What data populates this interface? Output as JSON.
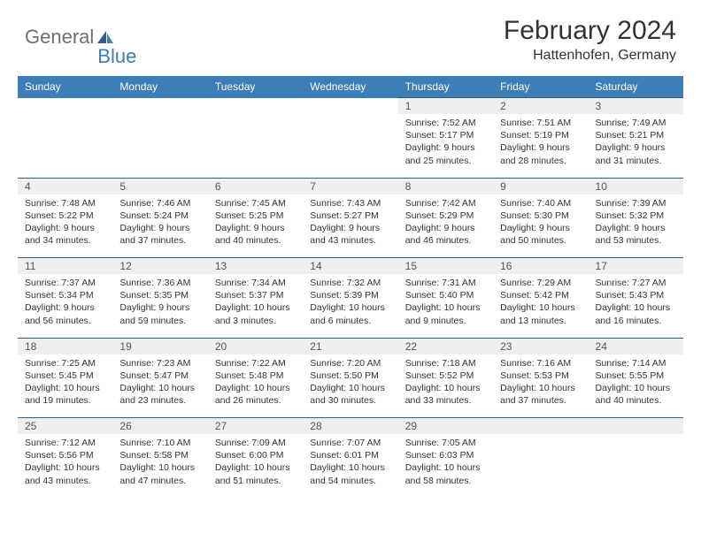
{
  "logo": {
    "text1": "General",
    "text2": "Blue"
  },
  "title": "February 2024",
  "location": "Hattenhofen, Germany",
  "day_header_bg": "#3d7db8",
  "day_header_fg": "#ffffff",
  "daynum_bg": "#efefef",
  "rule_color": "#2d5f8f",
  "days_of_week": [
    "Sunday",
    "Monday",
    "Tuesday",
    "Wednesday",
    "Thursday",
    "Friday",
    "Saturday"
  ],
  "weeks": [
    [
      null,
      null,
      null,
      null,
      {
        "n": "1",
        "sr": "Sunrise: 7:52 AM",
        "ss": "Sunset: 5:17 PM",
        "d1": "Daylight: 9 hours",
        "d2": "and 25 minutes."
      },
      {
        "n": "2",
        "sr": "Sunrise: 7:51 AM",
        "ss": "Sunset: 5:19 PM",
        "d1": "Daylight: 9 hours",
        "d2": "and 28 minutes."
      },
      {
        "n": "3",
        "sr": "Sunrise: 7:49 AM",
        "ss": "Sunset: 5:21 PM",
        "d1": "Daylight: 9 hours",
        "d2": "and 31 minutes."
      }
    ],
    [
      {
        "n": "4",
        "sr": "Sunrise: 7:48 AM",
        "ss": "Sunset: 5:22 PM",
        "d1": "Daylight: 9 hours",
        "d2": "and 34 minutes."
      },
      {
        "n": "5",
        "sr": "Sunrise: 7:46 AM",
        "ss": "Sunset: 5:24 PM",
        "d1": "Daylight: 9 hours",
        "d2": "and 37 minutes."
      },
      {
        "n": "6",
        "sr": "Sunrise: 7:45 AM",
        "ss": "Sunset: 5:25 PM",
        "d1": "Daylight: 9 hours",
        "d2": "and 40 minutes."
      },
      {
        "n": "7",
        "sr": "Sunrise: 7:43 AM",
        "ss": "Sunset: 5:27 PM",
        "d1": "Daylight: 9 hours",
        "d2": "and 43 minutes."
      },
      {
        "n": "8",
        "sr": "Sunrise: 7:42 AM",
        "ss": "Sunset: 5:29 PM",
        "d1": "Daylight: 9 hours",
        "d2": "and 46 minutes."
      },
      {
        "n": "9",
        "sr": "Sunrise: 7:40 AM",
        "ss": "Sunset: 5:30 PM",
        "d1": "Daylight: 9 hours",
        "d2": "and 50 minutes."
      },
      {
        "n": "10",
        "sr": "Sunrise: 7:39 AM",
        "ss": "Sunset: 5:32 PM",
        "d1": "Daylight: 9 hours",
        "d2": "and 53 minutes."
      }
    ],
    [
      {
        "n": "11",
        "sr": "Sunrise: 7:37 AM",
        "ss": "Sunset: 5:34 PM",
        "d1": "Daylight: 9 hours",
        "d2": "and 56 minutes."
      },
      {
        "n": "12",
        "sr": "Sunrise: 7:36 AM",
        "ss": "Sunset: 5:35 PM",
        "d1": "Daylight: 9 hours",
        "d2": "and 59 minutes."
      },
      {
        "n": "13",
        "sr": "Sunrise: 7:34 AM",
        "ss": "Sunset: 5:37 PM",
        "d1": "Daylight: 10 hours",
        "d2": "and 3 minutes."
      },
      {
        "n": "14",
        "sr": "Sunrise: 7:32 AM",
        "ss": "Sunset: 5:39 PM",
        "d1": "Daylight: 10 hours",
        "d2": "and 6 minutes."
      },
      {
        "n": "15",
        "sr": "Sunrise: 7:31 AM",
        "ss": "Sunset: 5:40 PM",
        "d1": "Daylight: 10 hours",
        "d2": "and 9 minutes."
      },
      {
        "n": "16",
        "sr": "Sunrise: 7:29 AM",
        "ss": "Sunset: 5:42 PM",
        "d1": "Daylight: 10 hours",
        "d2": "and 13 minutes."
      },
      {
        "n": "17",
        "sr": "Sunrise: 7:27 AM",
        "ss": "Sunset: 5:43 PM",
        "d1": "Daylight: 10 hours",
        "d2": "and 16 minutes."
      }
    ],
    [
      {
        "n": "18",
        "sr": "Sunrise: 7:25 AM",
        "ss": "Sunset: 5:45 PM",
        "d1": "Daylight: 10 hours",
        "d2": "and 19 minutes."
      },
      {
        "n": "19",
        "sr": "Sunrise: 7:23 AM",
        "ss": "Sunset: 5:47 PM",
        "d1": "Daylight: 10 hours",
        "d2": "and 23 minutes."
      },
      {
        "n": "20",
        "sr": "Sunrise: 7:22 AM",
        "ss": "Sunset: 5:48 PM",
        "d1": "Daylight: 10 hours",
        "d2": "and 26 minutes."
      },
      {
        "n": "21",
        "sr": "Sunrise: 7:20 AM",
        "ss": "Sunset: 5:50 PM",
        "d1": "Daylight: 10 hours",
        "d2": "and 30 minutes."
      },
      {
        "n": "22",
        "sr": "Sunrise: 7:18 AM",
        "ss": "Sunset: 5:52 PM",
        "d1": "Daylight: 10 hours",
        "d2": "and 33 minutes."
      },
      {
        "n": "23",
        "sr": "Sunrise: 7:16 AM",
        "ss": "Sunset: 5:53 PM",
        "d1": "Daylight: 10 hours",
        "d2": "and 37 minutes."
      },
      {
        "n": "24",
        "sr": "Sunrise: 7:14 AM",
        "ss": "Sunset: 5:55 PM",
        "d1": "Daylight: 10 hours",
        "d2": "and 40 minutes."
      }
    ],
    [
      {
        "n": "25",
        "sr": "Sunrise: 7:12 AM",
        "ss": "Sunset: 5:56 PM",
        "d1": "Daylight: 10 hours",
        "d2": "and 43 minutes."
      },
      {
        "n": "26",
        "sr": "Sunrise: 7:10 AM",
        "ss": "Sunset: 5:58 PM",
        "d1": "Daylight: 10 hours",
        "d2": "and 47 minutes."
      },
      {
        "n": "27",
        "sr": "Sunrise: 7:09 AM",
        "ss": "Sunset: 6:00 PM",
        "d1": "Daylight: 10 hours",
        "d2": "and 51 minutes."
      },
      {
        "n": "28",
        "sr": "Sunrise: 7:07 AM",
        "ss": "Sunset: 6:01 PM",
        "d1": "Daylight: 10 hours",
        "d2": "and 54 minutes."
      },
      {
        "n": "29",
        "sr": "Sunrise: 7:05 AM",
        "ss": "Sunset: 6:03 PM",
        "d1": "Daylight: 10 hours",
        "d2": "and 58 minutes."
      },
      null,
      null
    ]
  ]
}
